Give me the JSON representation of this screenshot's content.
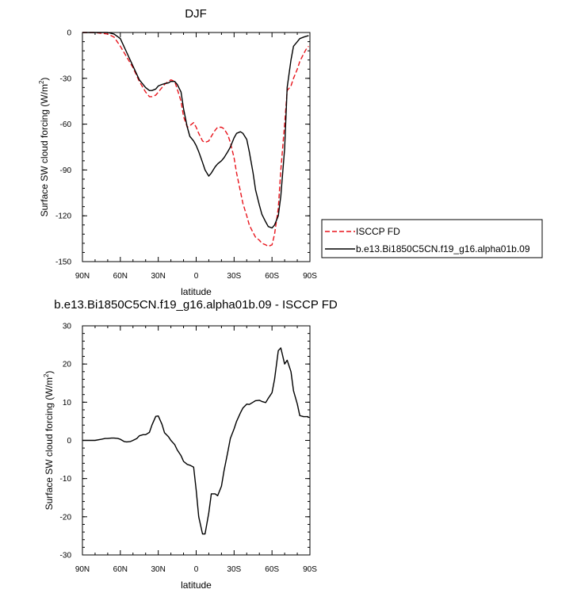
{
  "chart_data": [
    {
      "type": "line",
      "title": "DJF",
      "xlabel": "latitude",
      "ylabel": "Surface SW cloud forcing (W/m²)",
      "ylabel_main": "Surface SW cloud forcing (W/m",
      "ylabel_sup": "2",
      "ylabel_tail": ")",
      "xlim": [
        90,
        -90
      ],
      "ylim": [
        -150,
        0
      ],
      "xticks": [
        {
          "value": 90,
          "label": "90N"
        },
        {
          "value": 60,
          "label": "60N"
        },
        {
          "value": 30,
          "label": "30N"
        },
        {
          "value": 0,
          "label": "0"
        },
        {
          "value": -30,
          "label": "30S"
        },
        {
          "value": -60,
          "label": "60S"
        },
        {
          "value": -90,
          "label": "90S"
        }
      ],
      "yticks": [
        {
          "value": 0,
          "label": "0"
        },
        {
          "value": -30,
          "label": "-30"
        },
        {
          "value": -60,
          "label": "-60"
        },
        {
          "value": -90,
          "label": "-90"
        },
        {
          "value": -120,
          "label": "-120"
        },
        {
          "value": -150,
          "label": "-150"
        }
      ],
      "legend": {
        "placement": "right",
        "entries": [
          "ISCCP FD",
          "b.e13.Bi1850C5CN.f19_g16.alpha01b.09"
        ]
      },
      "series": [
        {
          "name": "ISCCP FD",
          "color": "#e8141c",
          "dash": "dashed",
          "x": [
            90,
            85,
            80,
            75,
            70,
            65,
            60,
            55,
            50,
            45,
            40,
            37,
            35,
            32,
            30,
            27,
            25,
            22,
            20,
            17,
            15,
            12,
            10,
            7,
            5,
            2,
            0,
            -2,
            -5,
            -7,
            -10,
            -12,
            -15,
            -17,
            -20,
            -22,
            -25,
            -27,
            -30,
            -32,
            -35,
            -37,
            -40,
            -42,
            -45,
            -47,
            -50,
            -52,
            -55,
            -57,
            -60,
            -62,
            -65,
            -67,
            -70,
            -72,
            -75,
            -77,
            -80,
            -82,
            -85,
            -87,
            -89
          ],
          "y": [
            0,
            0,
            0,
            -0.5,
            -1,
            -3,
            -9,
            -16,
            -23,
            -32,
            -39,
            -42,
            -42,
            -41,
            -39,
            -36,
            -34,
            -32,
            -31,
            -32,
            -37,
            -45,
            -55,
            -62,
            -61,
            -59,
            -62,
            -66,
            -71,
            -72,
            -71,
            -68,
            -64,
            -62,
            -62,
            -63,
            -67,
            -72,
            -82,
            -92,
            -104,
            -112,
            -120,
            -126,
            -131,
            -134,
            -136,
            -138,
            -139,
            -140,
            -139,
            -132,
            -115,
            -90,
            -60,
            -38,
            -35,
            -30,
            -24,
            -19,
            -14,
            -11,
            -9
          ]
        },
        {
          "name": "b.e13.Bi1850C5CN.f19_g16.alpha01b.09",
          "color": "#000000",
          "dash": "solid",
          "x": [
            90,
            85,
            80,
            75,
            70,
            65,
            60,
            55,
            50,
            45,
            40,
            37,
            35,
            32,
            30,
            27,
            25,
            22,
            20,
            17,
            15,
            12,
            10,
            7,
            5,
            2,
            0,
            -2,
            -5,
            -7,
            -10,
            -12,
            -15,
            -17,
            -20,
            -22,
            -25,
            -27,
            -30,
            -32,
            -35,
            -37,
            -40,
            -42,
            -45,
            -47,
            -50,
            -52,
            -55,
            -57,
            -60,
            -62,
            -65,
            -67,
            -70,
            -72,
            -75,
            -77,
            -80,
            -82,
            -85,
            -87,
            -89
          ],
          "y": [
            0,
            0,
            0,
            0,
            0,
            -1,
            -4,
            -13,
            -22,
            -31,
            -36,
            -38,
            -38,
            -37,
            -35,
            -34,
            -33.5,
            -33,
            -32,
            -32,
            -34,
            -39,
            -50,
            -62,
            -68,
            -71,
            -74,
            -78,
            -85,
            -90,
            -94,
            -92,
            -88,
            -86,
            -84,
            -82,
            -78,
            -75,
            -69,
            -66,
            -65,
            -66,
            -70,
            -78,
            -92,
            -103,
            -113,
            -119,
            -124,
            -127,
            -128,
            -126,
            -120,
            -107,
            -76,
            -36,
            -18,
            -9,
            -6,
            -4,
            -3,
            -2.5,
            -2
          ]
        }
      ]
    },
    {
      "type": "line",
      "title": "b.e13.Bi1850C5CN.f19_g16.alpha01b.09 - ISCCP FD",
      "xlabel": "latitude",
      "ylabel": "Surface SW cloud forcing (W/m²)",
      "ylabel_main": "Surface SW cloud forcing (W/m",
      "ylabel_sup": "2",
      "ylabel_tail": ")",
      "xlim": [
        90,
        -90
      ],
      "ylim": [
        -30,
        30
      ],
      "xticks": [
        {
          "value": 90,
          "label": "90N"
        },
        {
          "value": 60,
          "label": "60N"
        },
        {
          "value": 30,
          "label": "30N"
        },
        {
          "value": 0,
          "label": "0"
        },
        {
          "value": -30,
          "label": "30S"
        },
        {
          "value": -60,
          "label": "60S"
        },
        {
          "value": -90,
          "label": "90S"
        }
      ],
      "yticks": [
        {
          "value": 30,
          "label": "30"
        },
        {
          "value": 20,
          "label": "20"
        },
        {
          "value": 10,
          "label": "10"
        },
        {
          "value": 0,
          "label": "0"
        },
        {
          "value": -10,
          "label": "-10"
        },
        {
          "value": -20,
          "label": "-20"
        },
        {
          "value": -30,
          "label": "-30"
        }
      ],
      "series": [
        {
          "color": "#000000",
          "dash": "solid",
          "x": [
            90,
            85,
            80,
            75,
            72,
            70,
            67,
            65,
            62,
            60,
            57,
            55,
            52,
            50,
            47,
            45,
            42,
            40,
            37,
            35,
            32,
            30,
            27,
            25,
            22,
            20,
            17,
            15,
            12,
            10,
            7,
            5,
            2,
            0,
            -2,
            -5,
            -7,
            -10,
            -12,
            -15,
            -17,
            -20,
            -22,
            -25,
            -27,
            -30,
            -32,
            -35,
            -37,
            -40,
            -42,
            -45,
            -47,
            -50,
            -52,
            -55,
            -57,
            -60,
            -62,
            -65,
            -67,
            -70,
            -72,
            -75,
            -77,
            -80,
            -82,
            -85,
            -87,
            -89
          ],
          "y": [
            0,
            0,
            0,
            0.3,
            0.5,
            0.5,
            0.6,
            0.6,
            0.5,
            0.3,
            -0.3,
            -0.4,
            -0.3,
            0,
            0.5,
            1.2,
            1.5,
            1.5,
            2.1,
            4,
            6.3,
            6.4,
            4.2,
            2,
            1,
            0,
            -1.1,
            -2.5,
            -4,
            -5.5,
            -6.3,
            -6.5,
            -7,
            -13,
            -20,
            -24.5,
            -24.5,
            -19,
            -14,
            -14,
            -14.5,
            -12,
            -8,
            -3,
            0.5,
            3,
            5,
            7.2,
            8.5,
            9.5,
            9.4,
            10,
            10.4,
            10.5,
            10.2,
            9.9,
            11,
            12.5,
            16,
            23.5,
            24.2,
            20,
            21,
            18,
            13,
            9.5,
            6.5,
            6.2,
            6.2,
            6.2
          ]
        }
      ]
    }
  ]
}
